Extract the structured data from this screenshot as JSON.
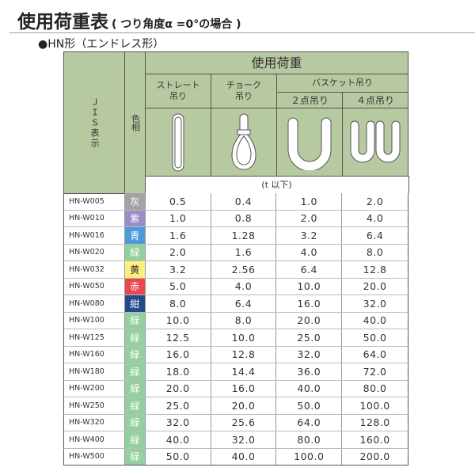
{
  "title": "使用荷重表",
  "title_note": "( つり角度α =0°の場合 )",
  "subtitle": "●HN形（エンドレス形）",
  "header": {
    "jis": "ＪＩＳ表示",
    "color": "色相",
    "load": "使用荷重",
    "straight": "ストレート\n吊り",
    "choke": "チョーク\n吊り",
    "basket": "バスケット吊り",
    "two_point": "２点吊り",
    "four_point": "４点吊り",
    "unit": "(t 以下)"
  },
  "colors": {
    "header_bg": "#b7c9a0",
    "灰": "#a3a3a3",
    "紫": "#9b8bc9",
    "青": "#4c9bd9",
    "緑": "#94cf9e",
    "黄": "#fbef7e",
    "赤": "#e9474c",
    "紺": "#25498a"
  },
  "rows": [
    {
      "jis": "HN-W005",
      "color": "灰",
      "straight": "0.5",
      "choke": "0.4",
      "two": "1.0",
      "four": "2.0"
    },
    {
      "jis": "HN-W010",
      "color": "紫",
      "straight": "1.0",
      "choke": "0.8",
      "two": "2.0",
      "four": "4.0"
    },
    {
      "jis": "HN-W016",
      "color": "青",
      "straight": "1.6",
      "choke": "1.28",
      "two": "3.2",
      "four": "6.4"
    },
    {
      "jis": "HN-W020",
      "color": "緑",
      "straight": "2.0",
      "choke": "1.6",
      "two": "4.0",
      "four": "8.0"
    },
    {
      "jis": "HN-W032",
      "color": "黄",
      "straight": "3.2",
      "choke": "2.56",
      "two": "6.4",
      "four": "12.8"
    },
    {
      "jis": "HN-W050",
      "color": "赤",
      "straight": "5.0",
      "choke": "4.0",
      "two": "10.0",
      "four": "20.0"
    },
    {
      "jis": "HN-W080",
      "color": "紺",
      "straight": "8.0",
      "choke": "6.4",
      "two": "16.0",
      "four": "32.0"
    },
    {
      "jis": "HN-W100",
      "color": "緑",
      "straight": "10.0",
      "choke": "8.0",
      "two": "20.0",
      "four": "40.0"
    },
    {
      "jis": "HN-W125",
      "color": "緑",
      "straight": "12.5",
      "choke": "10.0",
      "two": "25.0",
      "four": "50.0"
    },
    {
      "jis": "HN-W160",
      "color": "緑",
      "straight": "16.0",
      "choke": "12.8",
      "two": "32.0",
      "four": "64.0"
    },
    {
      "jis": "HN-W180",
      "color": "緑",
      "straight": "18.0",
      "choke": "14.4",
      "two": "36.0",
      "four": "72.0"
    },
    {
      "jis": "HN-W200",
      "color": "緑",
      "straight": "20.0",
      "choke": "16.0",
      "two": "40.0",
      "four": "80.0"
    },
    {
      "jis": "HN-W250",
      "color": "緑",
      "straight": "25.0",
      "choke": "20.0",
      "two": "50.0",
      "four": "100.0"
    },
    {
      "jis": "HN-W320",
      "color": "緑",
      "straight": "32.0",
      "choke": "25.6",
      "two": "64.0",
      "four": "128.0"
    },
    {
      "jis": "HN-W400",
      "color": "緑",
      "straight": "40.0",
      "choke": "32.0",
      "two": "80.0",
      "four": "160.0"
    },
    {
      "jis": "HN-W500",
      "color": "緑",
      "straight": "50.0",
      "choke": "40.0",
      "two": "100.0",
      "four": "200.0"
    }
  ]
}
